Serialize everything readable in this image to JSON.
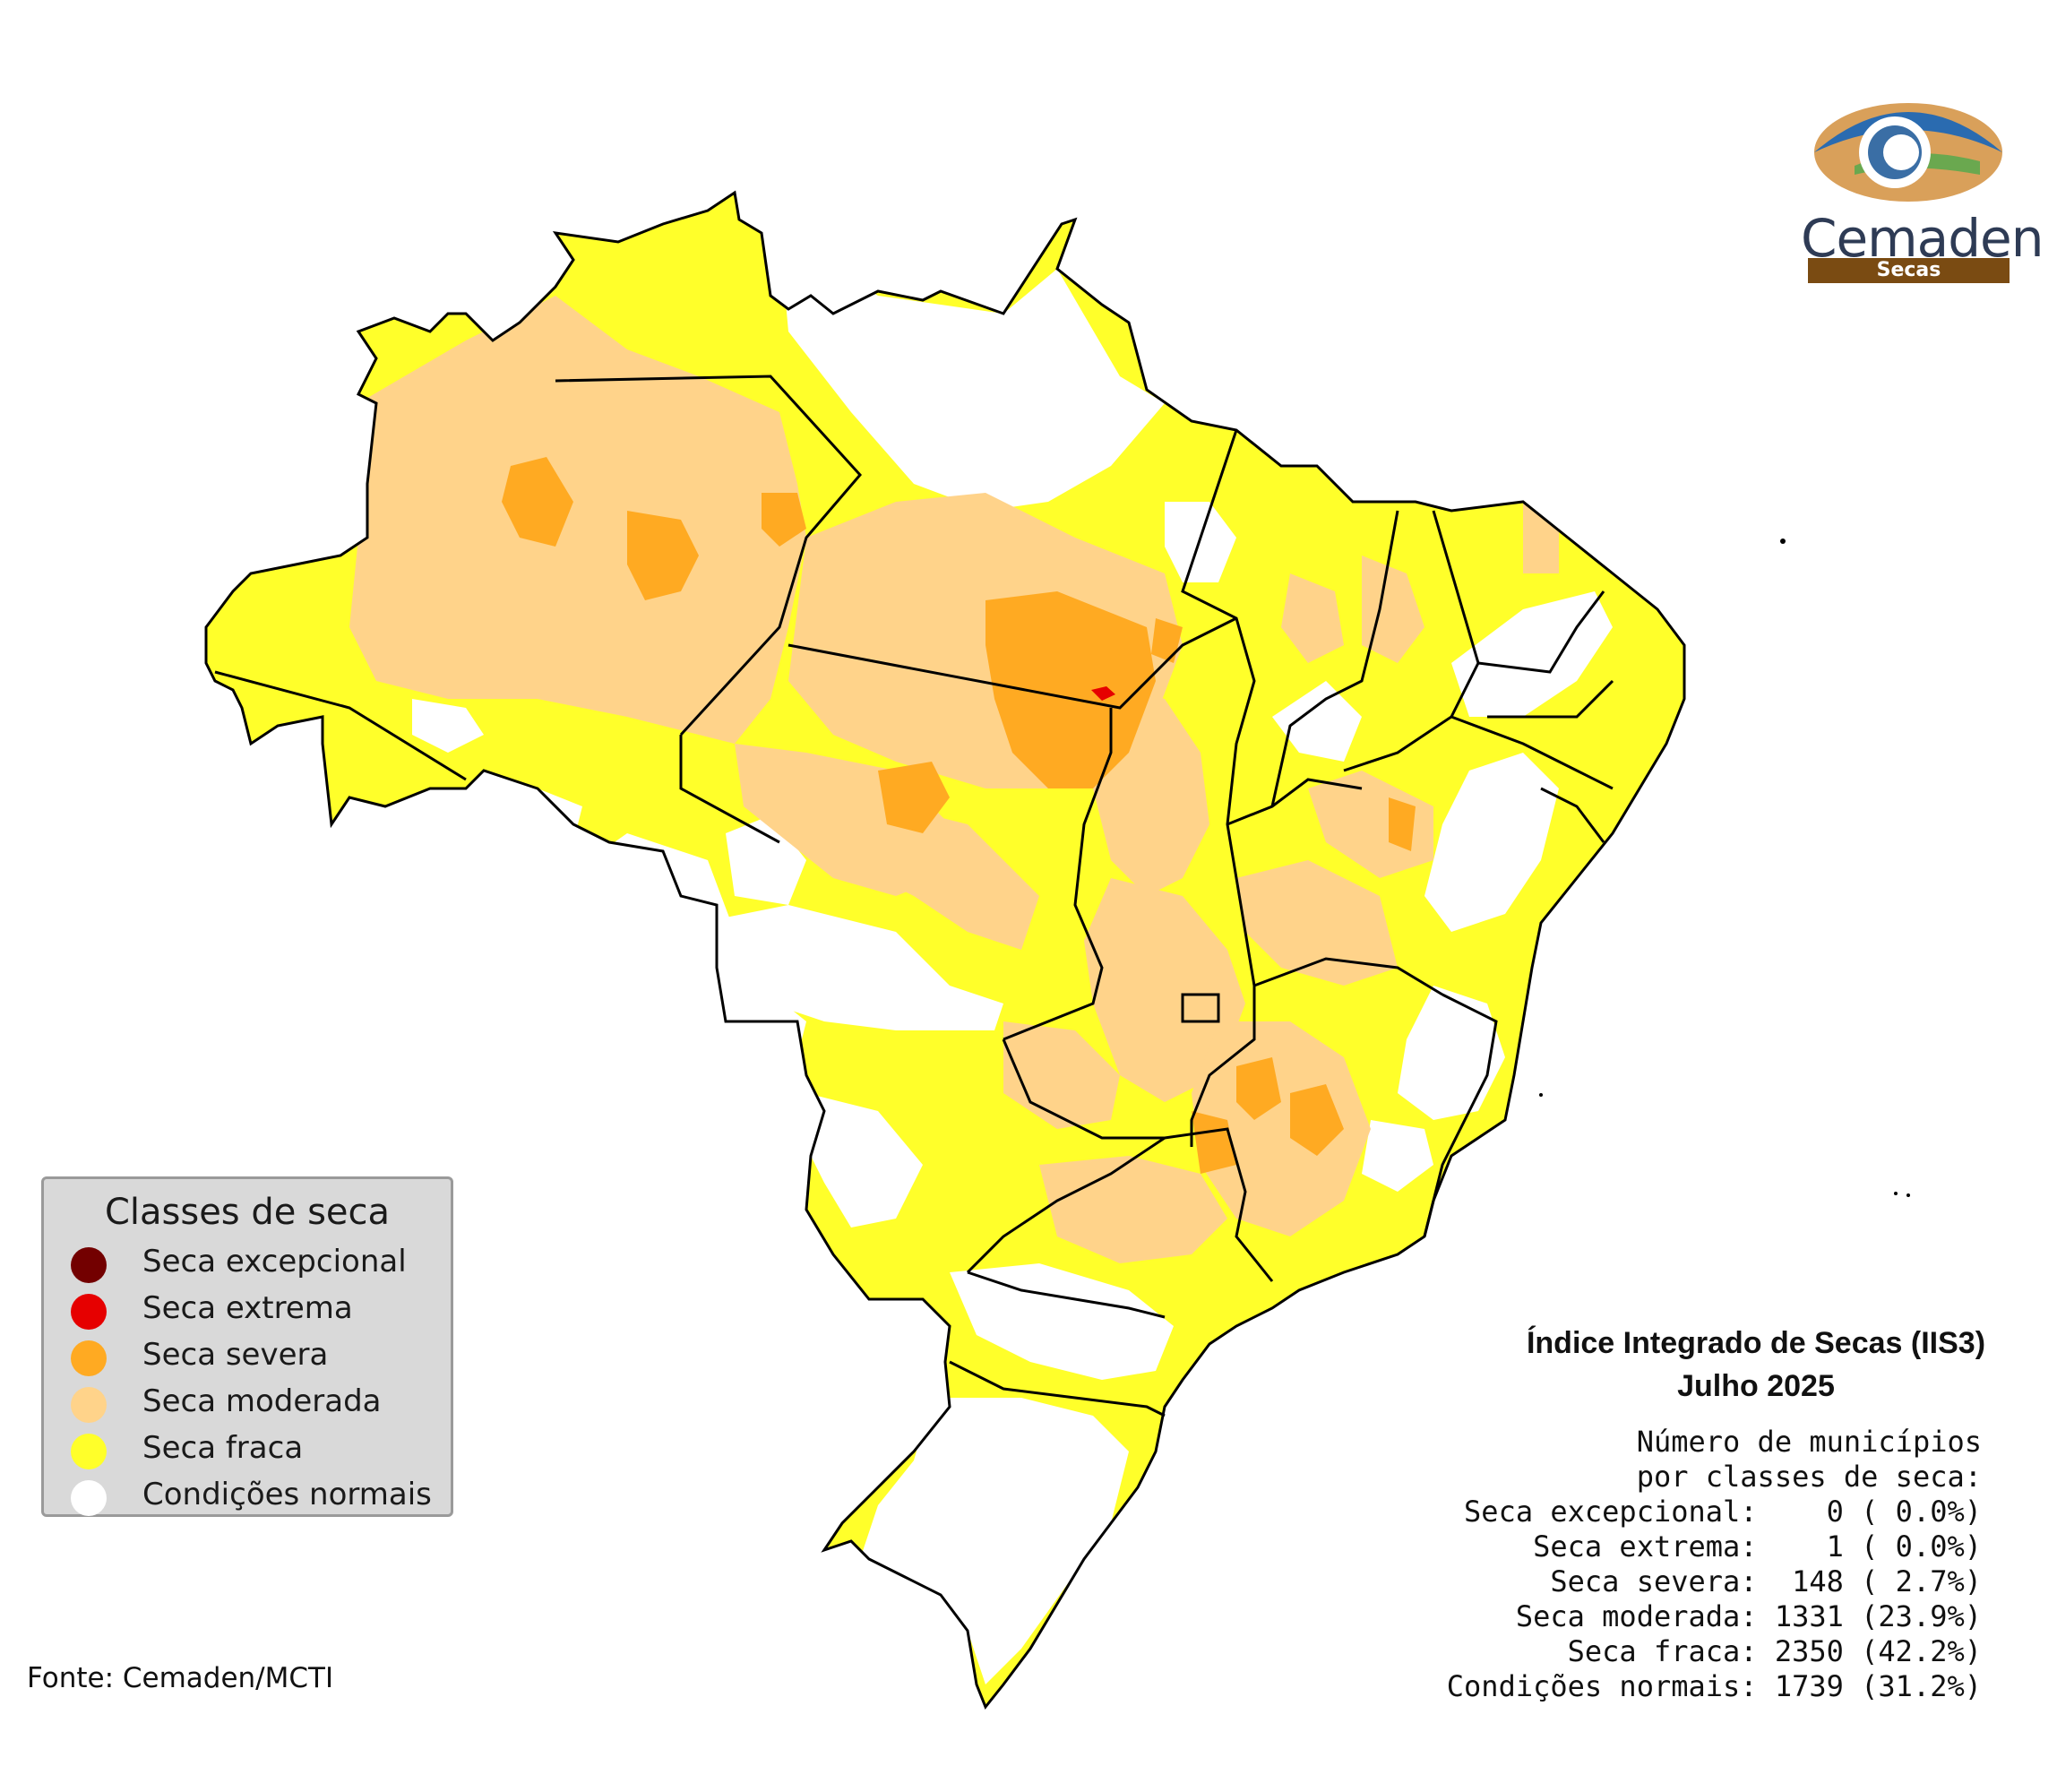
{
  "logo": {
    "name": "Cemaden",
    "subtitle": "Secas"
  },
  "legend": {
    "title": "Classes de seca",
    "items": [
      {
        "label": "Seca excepcional",
        "color": "#730000"
      },
      {
        "label": "Seca extrema",
        "color": "#e60000"
      },
      {
        "label": "Seca severa",
        "color": "#ffaa22"
      },
      {
        "label": "Seca moderada",
        "color": "#ffd38a"
      },
      {
        "label": "Seca fraca",
        "color": "#ffff2a"
      },
      {
        "label": "Condições normais",
        "color": "#ffffff"
      }
    ]
  },
  "title": "Índice Integrado de Secas (IIS3)",
  "subtitle": "Julho 2025",
  "stats": {
    "header_line1": "Número de municípios",
    "header_line2": "por classes de seca:",
    "rows": [
      {
        "label": "Seca excepcional:",
        "value": "   0 ( 0.0%)"
      },
      {
        "label": "Seca extrema:",
        "value": "   1 ( 0.0%)"
      },
      {
        "label": "Seca severa:",
        "value": " 148 ( 2.7%)"
      },
      {
        "label": "Seca moderada:",
        "value": "1331 (23.9%)"
      },
      {
        "label": "Seca fraca:",
        "value": "2350 (42.2%)"
      },
      {
        "label": "Condições normais:",
        "value": "1739 (31.2%)"
      }
    ]
  },
  "source": "Fonte: Cemaden/MCTI"
}
